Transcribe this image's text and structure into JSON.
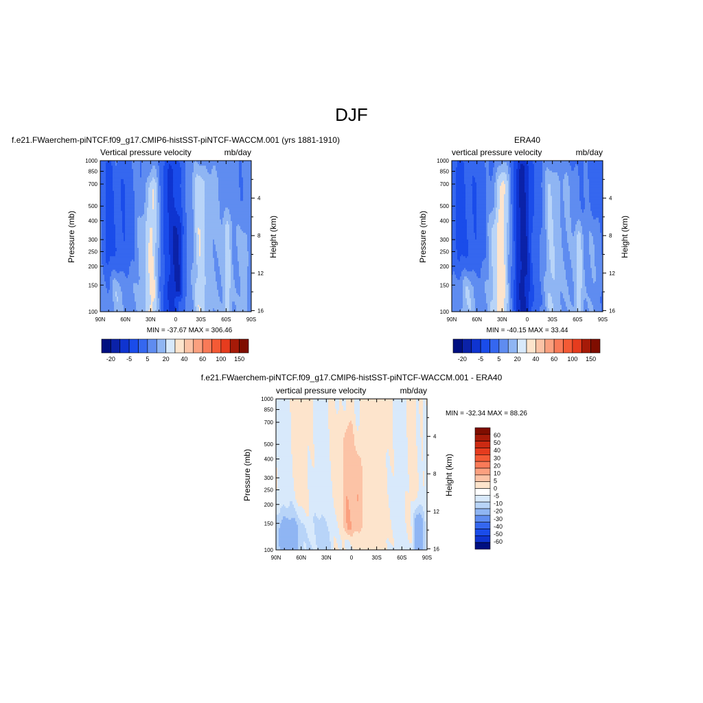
{
  "page_title": "DJF",
  "colors": {
    "pos_ramp": [
      "#fde4cc",
      "#fcc3a6",
      "#fba07f",
      "#f97a58",
      "#f45a35",
      "#e63c1e",
      "#cc2a12",
      "#a61a08",
      "#7f0d00"
    ],
    "neg_ramp": [
      "#d8e9fb",
      "#b8d4f8",
      "#8fb5f3",
      "#5f8cf0",
      "#3567ef",
      "#1a4cea",
      "#0f34d0",
      "#0b22a8",
      "#000f80"
    ]
  },
  "chart_data": [
    {
      "id": "model",
      "type": "heatmap",
      "title": "f.e21.FWaerchem-piNTCF.f09_g17.CMIP6-histSST-piNTCF-WACCM.001 (yrs 1881-1910)",
      "left_string": "Vertical pressure velocity",
      "right_string": "mb/day",
      "ylabel": "Pressure (mb)",
      "y2label": "Height (km)",
      "x_ticks": [
        "90N",
        "60N",
        "30N",
        "0",
        "30S",
        "60S",
        "90S"
      ],
      "y_ticks": [
        "100",
        "150",
        "200",
        "250",
        "300",
        "400",
        "500",
        "700",
        "850",
        "1000"
      ],
      "y2_ticks": [
        "16",
        "12",
        "8",
        "4"
      ],
      "xlim": [
        90,
        -90
      ],
      "ylim": [
        1000,
        100
      ],
      "log_y": true,
      "y2lim_km": [
        0,
        16
      ],
      "stats": "MIN = -37.67  MAX = 306.46",
      "colorbar_labels": [
        "-20",
        "-5",
        "5",
        "20",
        "40",
        "60",
        "100",
        "150"
      ],
      "colorbar_colors": [
        "#000f80",
        "#0b22a8",
        "#0f34d0",
        "#1a4cea",
        "#3567ef",
        "#5f8cf0",
        "#8fb5f3",
        "#d8e9fb",
        "#fde4cc",
        "#fcc3a6",
        "#fba07f",
        "#f97a58",
        "#f45a35",
        "#e63c1e",
        "#a61a08",
        "#7f0d00"
      ],
      "missing_region": {
        "lat": [
          -52,
          -90
        ],
        "p": [
          850,
          1000
        ]
      },
      "field": {
        "base": -14,
        "features": [
          {
            "lat": 80,
            "w": 5,
            "p_top": 120,
            "p_bot": 1000,
            "amp": -8
          },
          {
            "lat": 62,
            "w": 8,
            "p_top": 150,
            "p_bot": 1000,
            "amp": -6
          },
          {
            "lat": 28,
            "w": 5,
            "p_top": 170,
            "p_bot": 1000,
            "amp": 15
          },
          {
            "lat": 40,
            "w": 6,
            "p_top": 300,
            "p_bot": 1000,
            "amp": 6
          },
          {
            "lat": 5,
            "w": 8,
            "p_top": 120,
            "p_bot": 1000,
            "amp": -12
          },
          {
            "lat": -3,
            "w": 4,
            "p_top": 300,
            "p_bot": 700,
            "amp": -10
          },
          {
            "lat": -28,
            "w": 5,
            "p_top": 150,
            "p_bot": 1000,
            "amp": 9
          },
          {
            "lat": -40,
            "w": 12,
            "p_top": 150,
            "p_bot": 1000,
            "amp": 6
          },
          {
            "lat": -62,
            "w": 4,
            "p_top": 300,
            "p_bot": 1000,
            "amp": 10
          },
          {
            "lat": -80,
            "w": 6,
            "p_top": 350,
            "p_bot": 1000,
            "amp": 6
          },
          {
            "lat": 70,
            "w": 12,
            "p_top": 750,
            "p_bot": 1000,
            "amp": 12
          }
        ]
      }
    },
    {
      "id": "era40",
      "type": "heatmap",
      "title": "ERA40",
      "left_string": "vertical pressure velocity",
      "right_string": "mb/day",
      "ylabel": "Pressure (mb)",
      "y2label": "Height (km)",
      "x_ticks": [
        "90N",
        "60N",
        "30N",
        "0",
        "30S",
        "60S",
        "90S"
      ],
      "y_ticks": [
        "100",
        "150",
        "200",
        "250",
        "300",
        "400",
        "500",
        "700",
        "850",
        "1000"
      ],
      "y2_ticks": [
        "16",
        "12",
        "8",
        "4"
      ],
      "xlim": [
        90,
        -90
      ],
      "ylim": [
        1000,
        100
      ],
      "log_y": true,
      "y2lim_km": [
        0,
        16
      ],
      "stats": "MIN = -40.15  MAX =  33.44",
      "colorbar_labels": [
        "-20",
        "-5",
        "5",
        "20",
        "40",
        "60",
        "100",
        "150"
      ],
      "colorbar_colors": [
        "#000f80",
        "#0b22a8",
        "#0f34d0",
        "#1a4cea",
        "#3567ef",
        "#5f8cf0",
        "#8fb5f3",
        "#d8e9fb",
        "#fde4cc",
        "#fcc3a6",
        "#fba07f",
        "#f97a58",
        "#f45a35",
        "#e63c1e",
        "#a61a08",
        "#7f0d00"
      ],
      "missing_region": null,
      "field": {
        "base": -16,
        "features": [
          {
            "lat": 80,
            "w": 5,
            "p_top": 120,
            "p_bot": 1000,
            "amp": -6
          },
          {
            "lat": 62,
            "w": 8,
            "p_top": 150,
            "p_bot": 1000,
            "amp": -4
          },
          {
            "lat": 30,
            "w": 6,
            "p_top": 150,
            "p_bot": 1000,
            "amp": 18
          },
          {
            "lat": 42,
            "w": 6,
            "p_top": 300,
            "p_bot": 1000,
            "amp": 8
          },
          {
            "lat": 5,
            "w": 7,
            "p_top": 120,
            "p_bot": 1000,
            "amp": -16
          },
          {
            "lat": -28,
            "w": 6,
            "p_top": 150,
            "p_bot": 1000,
            "amp": 10
          },
          {
            "lat": -45,
            "w": 10,
            "p_top": 150,
            "p_bot": 1000,
            "amp": 6
          },
          {
            "lat": -62,
            "w": 4,
            "p_top": 350,
            "p_bot": 1000,
            "amp": 12
          },
          {
            "lat": -78,
            "w": 6,
            "p_top": 350,
            "p_bot": 1000,
            "amp": 6
          },
          {
            "lat": 72,
            "w": 12,
            "p_top": 750,
            "p_bot": 1000,
            "amp": 14
          }
        ]
      }
    },
    {
      "id": "diff",
      "type": "heatmap",
      "title": "f.e21.FWaerchem-piNTCF.f09_g17.CMIP6-histSST-piNTCF-WACCM.001 - ERA40",
      "left_string": "vertical pressure velocity",
      "right_string": "mb/day",
      "ylabel": "Pressure (mb)",
      "y2label": "Height (km)",
      "x_ticks": [
        "90N",
        "60N",
        "30N",
        "0",
        "30S",
        "60S",
        "90S"
      ],
      "y_ticks": [
        "100",
        "150",
        "200",
        "250",
        "300",
        "400",
        "500",
        "700",
        "850",
        "1000"
      ],
      "y2_ticks": [
        "16",
        "12",
        "8",
        "4"
      ],
      "xlim": [
        90,
        -90
      ],
      "ylim": [
        1000,
        100
      ],
      "log_y": true,
      "y2lim_km": [
        0,
        16
      ],
      "stats": "MIN = -32.34  MAX =  88.26",
      "colorbar_labels": [
        "60",
        "50",
        "40",
        "30",
        "20",
        "10",
        "5",
        "0",
        "-5",
        "-10",
        "-20",
        "-30",
        "-40",
        "-50",
        "-60"
      ],
      "colorbar_colors": [
        "#7f0d00",
        "#a61a08",
        "#cc2a12",
        "#e63c1e",
        "#f45a35",
        "#f97a58",
        "#fba07f",
        "#fcc3a6",
        "#fde4cc",
        "#ffffff",
        "#d8e9fb",
        "#b8d4f8",
        "#8fb5f3",
        "#5f8cf0",
        "#3567ef",
        "#1a4cea",
        "#0f34d0",
        "#000f80"
      ],
      "missing_region": {
        "lat": [
          -52,
          -90
        ],
        "p": [
          900,
          1000
        ]
      },
      "field": {
        "base": 0,
        "features": [
          {
            "lat": 78,
            "w": 7,
            "p_top": 100,
            "p_bot": 900,
            "amp": -3
          },
          {
            "lat": 58,
            "w": 8,
            "p_top": 100,
            "p_bot": 900,
            "amp": 3
          },
          {
            "lat": 40,
            "w": 8,
            "p_top": 100,
            "p_bot": 1000,
            "amp": -3
          },
          {
            "lat": 20,
            "w": 4,
            "p_top": 150,
            "p_bot": 1000,
            "amp": 2
          },
          {
            "lat": 4,
            "w": 5,
            "p_top": 200,
            "p_bot": 700,
            "amp": 10
          },
          {
            "lat": -8,
            "w": 4,
            "p_top": 300,
            "p_bot": 700,
            "amp": 8
          },
          {
            "lat": -30,
            "w": 10,
            "p_top": 100,
            "p_bot": 1000,
            "amp": 3
          },
          {
            "lat": -55,
            "w": 6,
            "p_top": 100,
            "p_bot": 1000,
            "amp": -3
          },
          {
            "lat": -72,
            "w": 4,
            "p_top": 100,
            "p_bot": 900,
            "amp": 3
          },
          {
            "lat": 72,
            "w": 14,
            "p_top": 780,
            "p_bot": 1000,
            "amp": -14
          },
          {
            "lat": -80,
            "w": 5,
            "p_top": 730,
            "p_bot": 1000,
            "amp": -18
          },
          {
            "lat": 30,
            "w": 8,
            "p_top": 820,
            "p_bot": 1000,
            "amp": -6
          }
        ]
      }
    }
  ]
}
